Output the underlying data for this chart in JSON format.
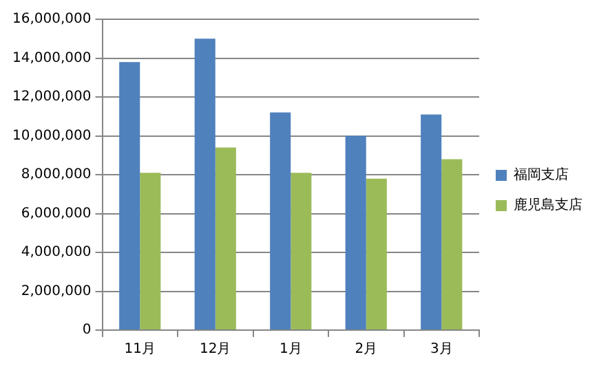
{
  "chart_data": {
    "type": "bar",
    "categories": [
      "11月",
      "12月",
      "1月",
      "2月",
      "3月"
    ],
    "series": [
      {
        "name": "福岡支店",
        "color": "#4f81bd",
        "values": [
          13800000,
          15000000,
          11200000,
          10000000,
          11100000
        ]
      },
      {
        "name": "鹿児島支店",
        "color": "#9bbb59",
        "values": [
          8100000,
          9400000,
          8100000,
          7800000,
          8800000
        ]
      }
    ],
    "ylim": [
      0,
      16000000
    ],
    "yticks": [
      0,
      {
        "value": 2000000,
        "label": "2,000,000"
      },
      {
        "value": 4000000,
        "label": "4,000,000"
      },
      {
        "value": 6000000,
        "label": "6,000,000"
      },
      {
        "value": 8000000,
        "label": "8,000,000"
      },
      {
        "value": 10000000,
        "label": "10,000,000"
      },
      {
        "value": 12000000,
        "label": "12,000,000"
      },
      {
        "value": 14000000,
        "label": "14,000,000"
      },
      {
        "value": 16000000,
        "label": "16,000,000"
      }
    ],
    "grid": "y",
    "legend": "right"
  }
}
